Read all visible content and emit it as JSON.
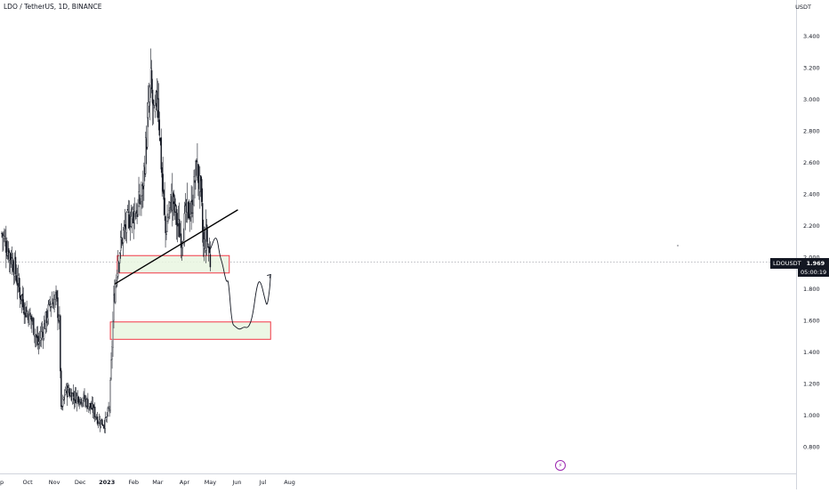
{
  "header": {
    "symbol_title": "LDO / TetherUS, 1D, BINANCE",
    "unit": "USDT"
  },
  "price_tag": {
    "symbol": "LDOUSDT",
    "price": "1.969",
    "countdown": "05:00:19"
  },
  "event_icon": "lightning-icon",
  "colors": {
    "candles": "#131722",
    "support_border": "#f23645",
    "support_fill": "#e9f6e1",
    "background": "#ffffff"
  },
  "chart_data": {
    "type": "candlestick",
    "x_axis": {
      "tick_labels": [
        "p",
        "Oct",
        "Nov",
        "Dec",
        "2023",
        "Feb",
        "Mar",
        "Apr",
        "May",
        "Jun",
        "Jul",
        "Aug"
      ],
      "bold_ticks": [
        "2023"
      ]
    },
    "y_axis": {
      "unit": "USDT",
      "range": [
        0.75,
        3.55
      ],
      "tick_labels": [
        "3.400",
        "3.200",
        "3.000",
        "2.800",
        "2.600",
        "2.400",
        "2.200",
        "2.000",
        "1.800",
        "1.600",
        "1.400",
        "1.200",
        "1.000",
        "0.800"
      ],
      "tick_values": [
        3.4,
        3.2,
        3.0,
        2.8,
        2.6,
        2.4,
        2.2,
        2.0,
        1.8,
        1.6,
        1.4,
        1.2,
        1.0,
        0.8
      ]
    },
    "current_price": 1.969,
    "price_path": [
      [
        "2022-09-01",
        2.15
      ],
      [
        "2022-09-08",
        2.05
      ],
      [
        "2022-09-15",
        1.95
      ],
      [
        "2022-09-22",
        1.78
      ],
      [
        "2022-09-29",
        1.66
      ],
      [
        "2022-10-06",
        1.6
      ],
      [
        "2022-10-13",
        1.45
      ],
      [
        "2022-10-20",
        1.56
      ],
      [
        "2022-10-27",
        1.7
      ],
      [
        "2022-11-03",
        1.74
      ],
      [
        "2022-11-07",
        1.58
      ],
      [
        "2022-11-09",
        1.02
      ],
      [
        "2022-11-14",
        1.16
      ],
      [
        "2022-11-24",
        1.12
      ],
      [
        "2022-12-06",
        1.1
      ],
      [
        "2022-12-16",
        1.03
      ],
      [
        "2022-12-23",
        0.96
      ],
      [
        "2022-12-30",
        0.95
      ],
      [
        "2023-01-04",
        1.05
      ],
      [
        "2023-01-07",
        1.45
      ],
      [
        "2023-01-09",
        1.72
      ],
      [
        "2023-01-14",
        2.0
      ],
      [
        "2023-01-20",
        2.15
      ],
      [
        "2023-01-27",
        2.25
      ],
      [
        "2023-02-05",
        2.3
      ],
      [
        "2023-02-11",
        2.4
      ],
      [
        "2023-02-18",
        2.9
      ],
      [
        "2023-02-21",
        3.1
      ],
      [
        "2023-02-25",
        2.85
      ],
      [
        "2023-03-01",
        3.05
      ],
      [
        "2023-03-05",
        2.6
      ],
      [
        "2023-03-10",
        2.15
      ],
      [
        "2023-03-14",
        2.3
      ],
      [
        "2023-03-18",
        2.38
      ],
      [
        "2023-03-24",
        2.2
      ],
      [
        "2023-03-29",
        2.12
      ],
      [
        "2023-04-03",
        2.28
      ],
      [
        "2023-04-09",
        2.3
      ],
      [
        "2023-04-15",
        2.58
      ],
      [
        "2023-04-20",
        2.4
      ],
      [
        "2023-04-23",
        2.05
      ],
      [
        "2023-04-26",
        2.14
      ],
      [
        "2023-04-29",
        2.06
      ],
      [
        "2023-05-01",
        1.97
      ]
    ],
    "annotations": {
      "trendline": {
        "from": [
          "2023-01-10",
          1.83
        ],
        "to": [
          "2023-06-02",
          2.3
        ]
      },
      "support_zones": [
        {
          "from": "2023-01-13",
          "to": "2023-05-23",
          "low": 1.9,
          "high": 2.01
        },
        {
          "from": "2023-01-05",
          "to": "2023-07-10",
          "low": 1.48,
          "high": 1.59
        }
      ],
      "projection_path": [
        [
          "2023-05-01",
          2.05
        ],
        [
          "2023-05-08",
          2.15
        ],
        [
          "2023-05-12",
          2.01
        ],
        [
          "2023-05-15",
          1.96
        ],
        [
          "2023-05-18",
          1.88
        ],
        [
          "2023-05-20",
          1.84
        ],
        [
          "2023-05-22",
          1.86
        ],
        [
          "2023-05-26",
          1.58
        ],
        [
          "2023-05-30",
          1.56
        ],
        [
          "2023-06-04",
          1.54
        ],
        [
          "2023-06-09",
          1.56
        ],
        [
          "2023-06-14",
          1.55
        ],
        [
          "2023-06-19",
          1.62
        ],
        [
          "2023-06-24",
          1.82
        ],
        [
          "2023-06-28",
          1.86
        ],
        [
          "2023-07-04",
          1.72
        ],
        [
          "2023-07-06",
          1.69
        ],
        [
          "2023-07-09",
          1.8
        ],
        [
          "2023-07-10",
          1.89
        ]
      ]
    }
  }
}
